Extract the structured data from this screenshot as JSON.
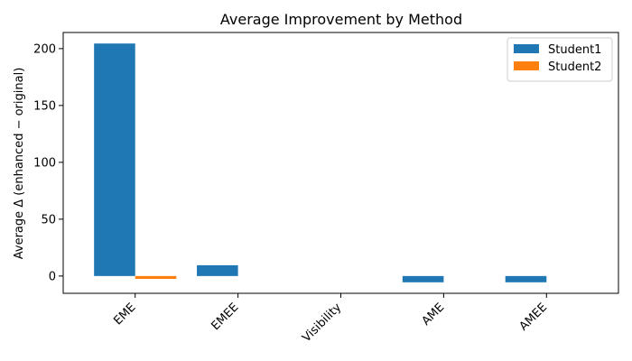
{
  "chart_data": {
    "type": "bar",
    "title": "Average Improvement by Method",
    "xlabel": "",
    "ylabel": "Average Δ (enhanced − original)",
    "categories": [
      "EME",
      "EMEE",
      "Visibility",
      "AME",
      "AMEE"
    ],
    "series": [
      {
        "name": "Student1",
        "color": "#1f77b4",
        "values": [
          204.5,
          9.5,
          0.0,
          -5.5,
          -5.5
        ]
      },
      {
        "name": "Student2",
        "color": "#ff7f0e",
        "values": [
          -2.5,
          0.0,
          0.0,
          0.0,
          0.0
        ]
      }
    ],
    "ylim": [
      -15.2,
      214.2
    ],
    "yticks": [
      0,
      50,
      100,
      150,
      200
    ],
    "grid": false,
    "legend": "top-right"
  }
}
